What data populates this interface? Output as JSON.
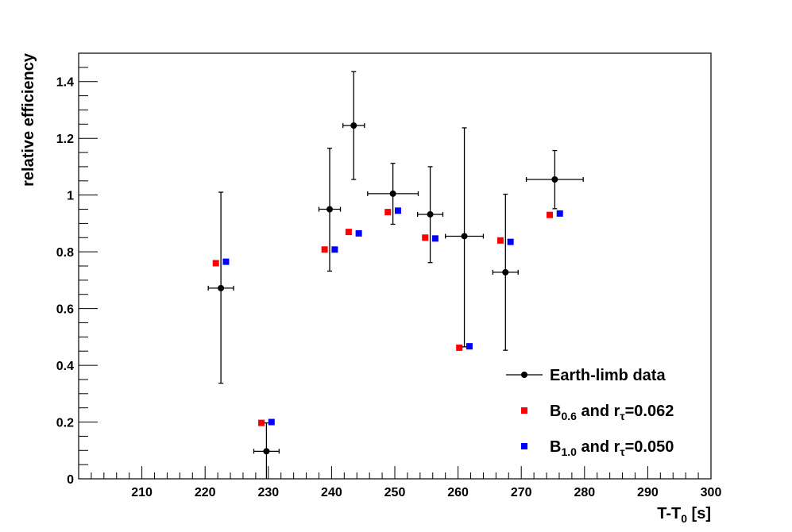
{
  "chart_data": {
    "type": "scatter",
    "xlabel": "T-T",
    "xlabel_sub": "0",
    "xlabel_unit": " [s]",
    "ylabel": "relative efficiency",
    "xlim": [
      200,
      300
    ],
    "ylim": [
      0,
      1.5
    ],
    "xticks": [
      210,
      220,
      230,
      240,
      250,
      260,
      270,
      280,
      290,
      300
    ],
    "yticks": [
      0,
      0.2,
      0.4,
      0.6,
      0.8,
      1,
      1.2,
      1.4
    ],
    "ytick_labels": [
      "0",
      "0.2",
      "0.4",
      "0.6",
      "0.8",
      "1",
      "1.2",
      "1.4"
    ],
    "legend_position": "bottom-right",
    "series": [
      {
        "name": "Earth-limb data",
        "color": "#000000",
        "marker": "circle",
        "points": [
          {
            "x": 222.5,
            "y": 0.672,
            "xerr": 2.0,
            "ylo": 0.337,
            "yhi": 1.01
          },
          {
            "x": 229.7,
            "y": 0.097,
            "xerr": 2.0,
            "ylo": 0.0,
            "yhi": 0.197
          },
          {
            "x": 239.7,
            "y": 0.95,
            "xerr": 1.7,
            "ylo": 0.732,
            "yhi": 1.165
          },
          {
            "x": 243.5,
            "y": 1.245,
            "xerr": 1.7,
            "ylo": 1.055,
            "yhi": 1.435
          },
          {
            "x": 249.7,
            "y": 1.005,
            "xerr": 4.0,
            "ylo": 0.897,
            "yhi": 1.112
          },
          {
            "x": 255.6,
            "y": 0.932,
            "xerr": 2.0,
            "ylo": 0.762,
            "yhi": 1.1
          },
          {
            "x": 261.0,
            "y": 0.855,
            "xerr": 3.0,
            "ylo": 0.465,
            "yhi": 1.237
          },
          {
            "x": 267.5,
            "y": 0.728,
            "xerr": 2.0,
            "ylo": 0.453,
            "yhi": 1.003
          },
          {
            "x": 275.3,
            "y": 1.055,
            "xerr": 4.5,
            "ylo": 0.952,
            "yhi": 1.157
          }
        ]
      },
      {
        "name_main": "B",
        "name_sub": "0.6",
        "name_mid": " and r",
        "name_sub2": "τ",
        "name_tail": "=0.062",
        "color": "#ff0000",
        "marker": "square",
        "points": [
          {
            "x": 221.7,
            "y": 0.76
          },
          {
            "x": 228.9,
            "y": 0.197
          },
          {
            "x": 238.9,
            "y": 0.808
          },
          {
            "x": 242.7,
            "y": 0.87
          },
          {
            "x": 248.9,
            "y": 0.94
          },
          {
            "x": 254.8,
            "y": 0.85
          },
          {
            "x": 260.2,
            "y": 0.462
          },
          {
            "x": 266.7,
            "y": 0.84
          },
          {
            "x": 274.5,
            "y": 0.93
          }
        ]
      },
      {
        "name_main": "B",
        "name_sub": "1.0",
        "name_mid": " and r",
        "name_sub2": "τ",
        "name_tail": "=0.050",
        "color": "#0000ff",
        "marker": "square",
        "points": [
          {
            "x": 223.3,
            "y": 0.765
          },
          {
            "x": 230.5,
            "y": 0.2
          },
          {
            "x": 240.5,
            "y": 0.808
          },
          {
            "x": 244.3,
            "y": 0.865
          },
          {
            "x": 250.5,
            "y": 0.945
          },
          {
            "x": 256.4,
            "y": 0.847
          },
          {
            "x": 261.8,
            "y": 0.467
          },
          {
            "x": 268.3,
            "y": 0.835
          },
          {
            "x": 276.1,
            "y": 0.935
          }
        ]
      }
    ]
  }
}
